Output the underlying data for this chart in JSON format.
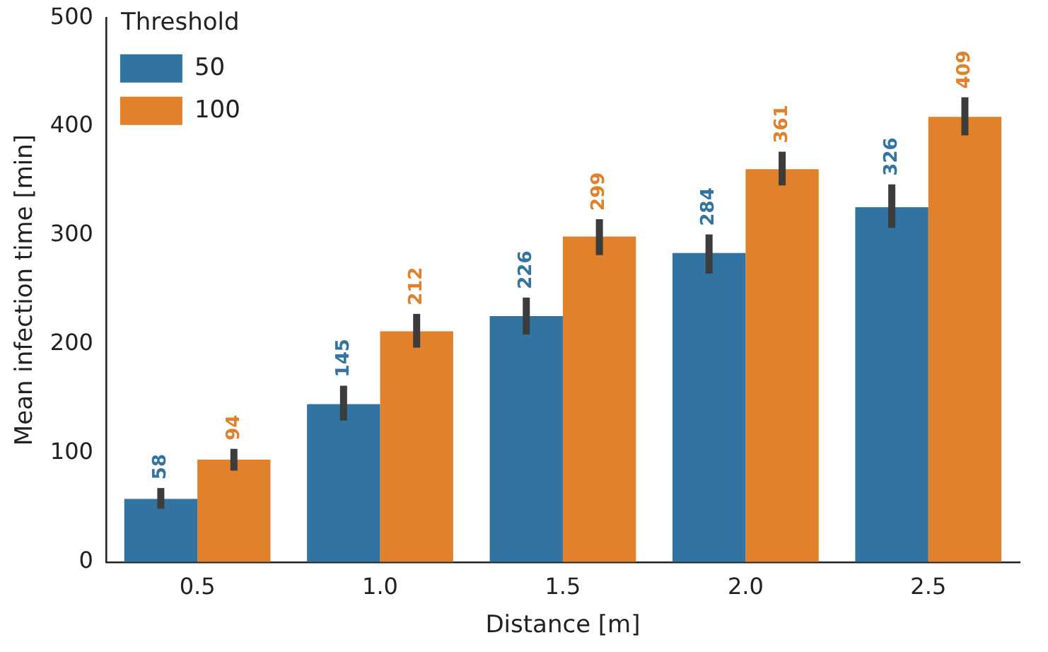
{
  "chart_data": {
    "type": "bar",
    "xlabel": "Distance [m]",
    "ylabel": "Mean infection time [min]",
    "legend_title": "Threshold",
    "categories": [
      "0.5",
      "1.0",
      "1.5",
      "2.0",
      "2.5"
    ],
    "series": [
      {
        "name": "50",
        "color": "#3274a1",
        "values": [
          58,
          145,
          226,
          284,
          326
        ],
        "errors": [
          [
            49,
            68
          ],
          [
            130,
            162
          ],
          [
            209,
            243
          ],
          [
            265,
            301
          ],
          [
            307,
            347
          ]
        ]
      },
      {
        "name": "100",
        "color": "#e1812c",
        "values": [
          94,
          212,
          299,
          361,
          409
        ],
        "errors": [
          [
            84,
            104
          ],
          [
            197,
            228
          ],
          [
            282,
            315
          ],
          [
            346,
            377
          ],
          [
            392,
            427
          ]
        ]
      }
    ],
    "ylim": [
      0,
      500
    ],
    "yticks": [
      0,
      100,
      200,
      300,
      400,
      500
    ],
    "grid": false,
    "legend": "top left",
    "data_labels": true
  }
}
